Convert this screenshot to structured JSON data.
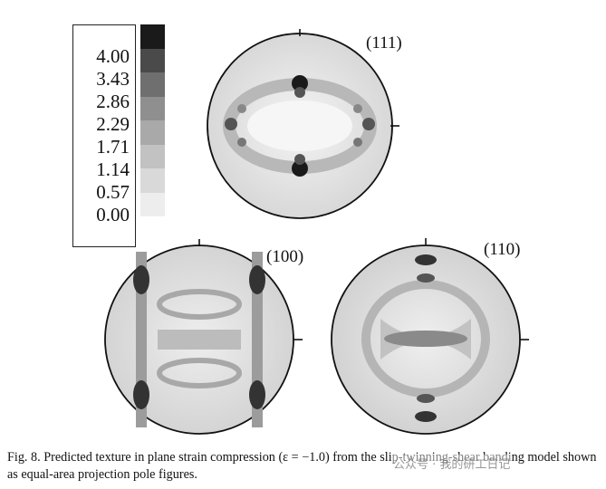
{
  "legend": {
    "values": [
      "4.00",
      "3.43",
      "2.86",
      "2.29",
      "1.71",
      "1.14",
      "0.57",
      "0.00"
    ],
    "colors": [
      "#1a1a1a",
      "#4a4a4a",
      "#6f6f6f",
      "#8f8f8f",
      "#a9a9a9",
      "#c2c2c2",
      "#d9d9d9",
      "#ededed"
    ]
  },
  "pole_figures": [
    {
      "label": "(111)"
    },
    {
      "label": "(100)"
    },
    {
      "label": "(110)"
    }
  ],
  "caption": "Fig. 8. Predicted texture in plane strain compression (ε = −1.0) from the slip-twinning-shear banding model shown as equal-area projection pole figures.",
  "watermark": "公众号 · 我的研工日记"
}
